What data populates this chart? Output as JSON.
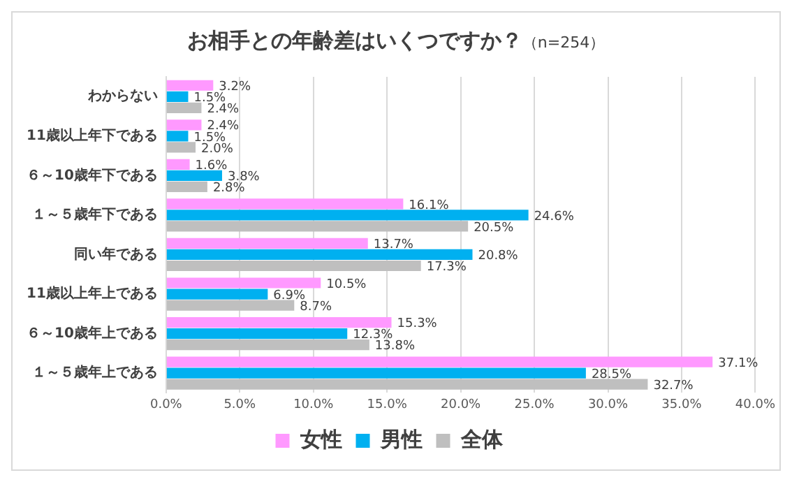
{
  "chart_data": {
    "type": "bar",
    "orientation": "horizontal",
    "title": "お相手との年齢差はいくつですか？",
    "subtitle": "（n=254）",
    "categories": [
      "わからない",
      "11歳以上年下である",
      "６～10歳年下である",
      "１～５歳年下である",
      "同い年である",
      "11歳以上年上である",
      "６～10歳年上である",
      "１～５歳年上である"
    ],
    "series": [
      {
        "name": "女性",
        "color": "#ff99ff",
        "values": [
          3.2,
          2.4,
          1.6,
          16.1,
          13.7,
          10.5,
          15.3,
          37.1
        ],
        "value_labels": [
          "3.2%",
          "2.4%",
          "1.6%",
          "16.1%",
          "13.7%",
          "10.5%",
          "15.3%",
          "37.1%"
        ]
      },
      {
        "name": "男性",
        "color": "#00b0f0",
        "values": [
          1.5,
          1.5,
          3.8,
          24.6,
          20.8,
          6.9,
          12.3,
          28.5
        ],
        "value_labels": [
          "1.5%",
          "1.5%",
          "3.8%",
          "24.6%",
          "20.8%",
          "6.9%",
          "12.3%",
          "28.5%"
        ]
      },
      {
        "name": "全体",
        "color": "#bfbfbf",
        "values": [
          2.4,
          2.0,
          2.8,
          20.5,
          17.3,
          8.7,
          13.8,
          32.7
        ],
        "value_labels": [
          "2.4%",
          "2.0%",
          "2.8%",
          "20.5%",
          "17.3%",
          "8.7%",
          "13.8%",
          "32.7%"
        ]
      }
    ],
    "xlim": [
      0,
      40
    ],
    "xticks": [
      {
        "value": 0,
        "label": "0.0%"
      },
      {
        "value": 5,
        "label": "5.0%"
      },
      {
        "value": 10,
        "label": "10.0%"
      },
      {
        "value": 15,
        "label": "15.0%"
      },
      {
        "value": 20,
        "label": "20.0%"
      },
      {
        "value": 25,
        "label": "25.0%"
      },
      {
        "value": 30,
        "label": "30.0%"
      },
      {
        "value": 35,
        "label": "35.0%"
      },
      {
        "value": 40,
        "label": "40.0%"
      }
    ],
    "grid": "x",
    "legend": "bottom"
  }
}
